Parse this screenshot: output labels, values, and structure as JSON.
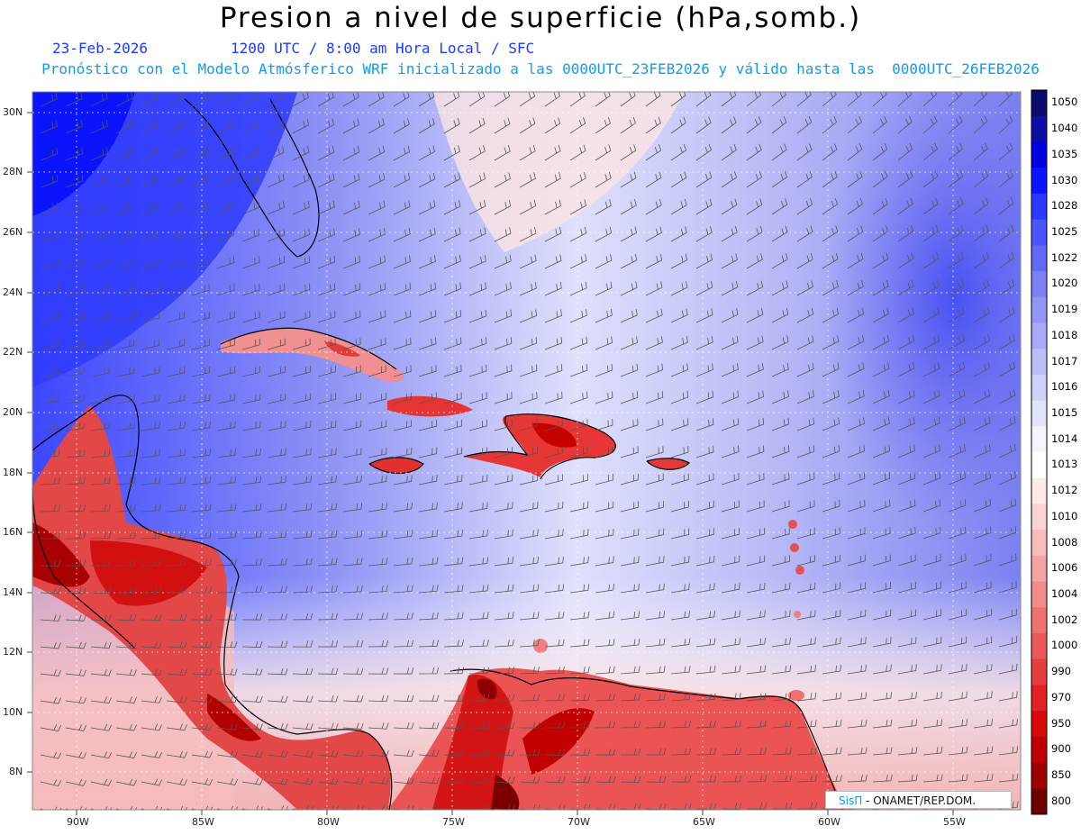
{
  "header": {
    "title": "Presion a nivel de superficie (hPa,somb.)",
    "date": "23-Feb-2026",
    "time": "1200 UTC / 8:00 am Hora Local / SFC",
    "forecast_info": "Pronóstico con el Modelo Atmósferico WRF inicializado a las 0000UTC_23FEB2026 y válido hasta las  0000UTC_26FEB2026"
  },
  "map": {
    "lat_labels": [
      "30N",
      "28N",
      "26N",
      "24N",
      "22N",
      "20N",
      "18N",
      "16N",
      "14N",
      "12N",
      "10N",
      "8N"
    ],
    "lon_labels": [
      "90W",
      "85W",
      "80W",
      "75W",
      "70W",
      "65W",
      "60W",
      "55W"
    ]
  },
  "colorbar": {
    "levels": [
      "1050",
      "1040",
      "1035",
      "1030",
      "1028",
      "1025",
      "1022",
      "1020",
      "1019",
      "1018",
      "1017",
      "1016",
      "1015",
      "1014",
      "1013",
      "1012",
      "1010",
      "1008",
      "1006",
      "1004",
      "1002",
      "1000",
      "990",
      "970",
      "950",
      "900",
      "850",
      "800"
    ],
    "colors": [
      "#0b0b6e",
      "#0e0ea6",
      "#0000e0",
      "#0a14ff",
      "#2c39ff",
      "#4a54ff",
      "#6269f5",
      "#7b80f5",
      "#9196f6",
      "#a7aaf7",
      "#bcbef8",
      "#d0d1fa",
      "#e3e4fc",
      "#f4f4ff",
      "#ffffff",
      "#fde9e9",
      "#fbd3d3",
      "#f8bcbc",
      "#f5a4a4",
      "#f28b8b",
      "#ee7272",
      "#ea5858",
      "#e63d3d",
      "#e02222",
      "#d80808",
      "#bf0000",
      "#9e0000",
      "#6e0000"
    ]
  },
  "credit": {
    "brand": "SisΠ",
    "org": "- ONAMET/REP.DOM."
  }
}
